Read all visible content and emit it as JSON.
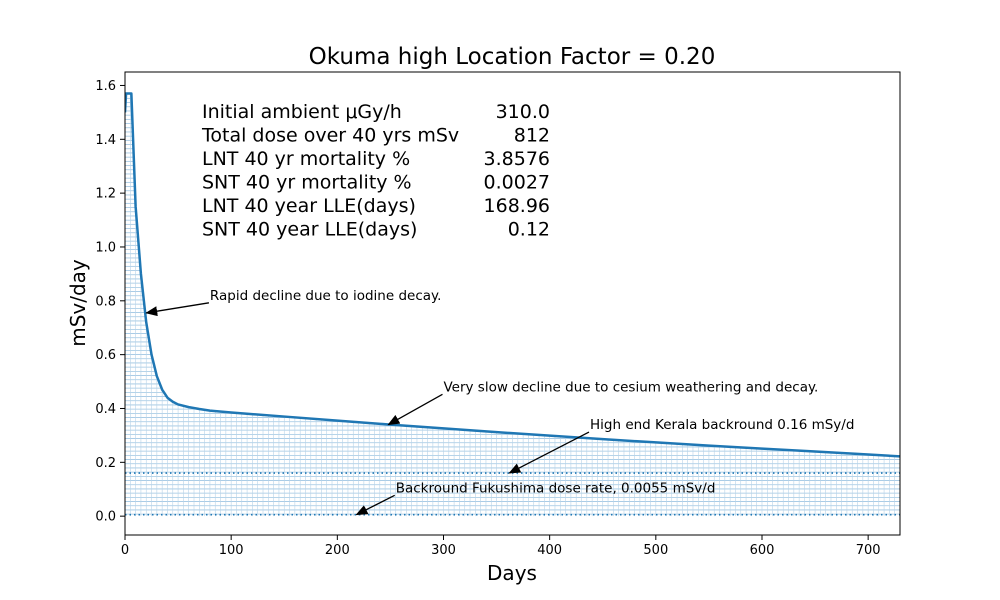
{
  "chart_data": {
    "type": "area",
    "title": "Okuma high Location Factor = 0.20",
    "xlabel": "Days",
    "ylabel": "mSv/day",
    "xlim": [
      0,
      730
    ],
    "ylim": [
      -0.07,
      1.65
    ],
    "xticks": [
      0,
      100,
      200,
      300,
      400,
      500,
      600,
      700
    ],
    "yticks": [
      0.0,
      0.2,
      0.4,
      0.6,
      0.8,
      1.0,
      1.2,
      1.4,
      1.6
    ],
    "ytick_labels": [
      "0.0",
      "0.2",
      "0.4",
      "0.6",
      "0.8",
      "1.0",
      "1.2",
      "1.4",
      "1.6"
    ],
    "grid": false,
    "series": [
      {
        "values_x": [
          0,
          1,
          6,
          10,
          15,
          20,
          25,
          30,
          35,
          40,
          45,
          50,
          60,
          70,
          80,
          100,
          150,
          200,
          250,
          300,
          350,
          400,
          450,
          500,
          550,
          600,
          650,
          700,
          730
        ],
        "values_y": [
          1.5,
          1.57,
          1.57,
          1.15,
          0.9,
          0.72,
          0.6,
          0.52,
          0.47,
          0.44,
          0.425,
          0.415,
          0.405,
          0.398,
          0.392,
          0.385,
          0.37,
          0.355,
          0.34,
          0.326,
          0.312,
          0.299,
          0.286,
          0.274,
          0.262,
          0.251,
          0.24,
          0.229,
          0.222
        ],
        "color": "#1f77b4",
        "fill": "hatched"
      }
    ],
    "reference_lines": [
      {
        "y": 0.16,
        "style": "dotted",
        "color": "#1f77b4"
      },
      {
        "y": 0.0055,
        "style": "dotted",
        "color": "#1f77b4"
      }
    ],
    "stats": [
      {
        "label": "Initial ambient μGy/h",
        "value": "310.0"
      },
      {
        "label": "Total dose over 40 yrs mSv",
        "value": "812"
      },
      {
        "label": "LNT 40 yr mortality %",
        "value": "3.8576"
      },
      {
        "label": "SNT 40 yr mortality %",
        "value": "0.0027"
      },
      {
        "label": "LNT 40 year LLE(days)",
        "value": "168.96"
      },
      {
        "label": "SNT 40 year LLE(days)",
        "value": "0.12"
      }
    ],
    "annotations": [
      {
        "text": "Rapid decline due to iodine decay.",
        "xy": [
          20,
          0.755
        ],
        "xytext": [
          80,
          0.8
        ]
      },
      {
        "text": "Very slow decline due to cesium weathering and decay.",
        "xy": [
          248,
          0.34
        ],
        "xytext": [
          300,
          0.46
        ]
      },
      {
        "text": "High end Kerala backround 0.16 mSy/d",
        "xy": [
          362,
          0.16
        ],
        "xytext": [
          438,
          0.32
        ]
      },
      {
        "text": "Backround Fukushima dose rate, 0.0055 mSv/d",
        "xy": [
          218,
          0.0055
        ],
        "xytext": [
          255,
          0.085
        ]
      }
    ]
  }
}
